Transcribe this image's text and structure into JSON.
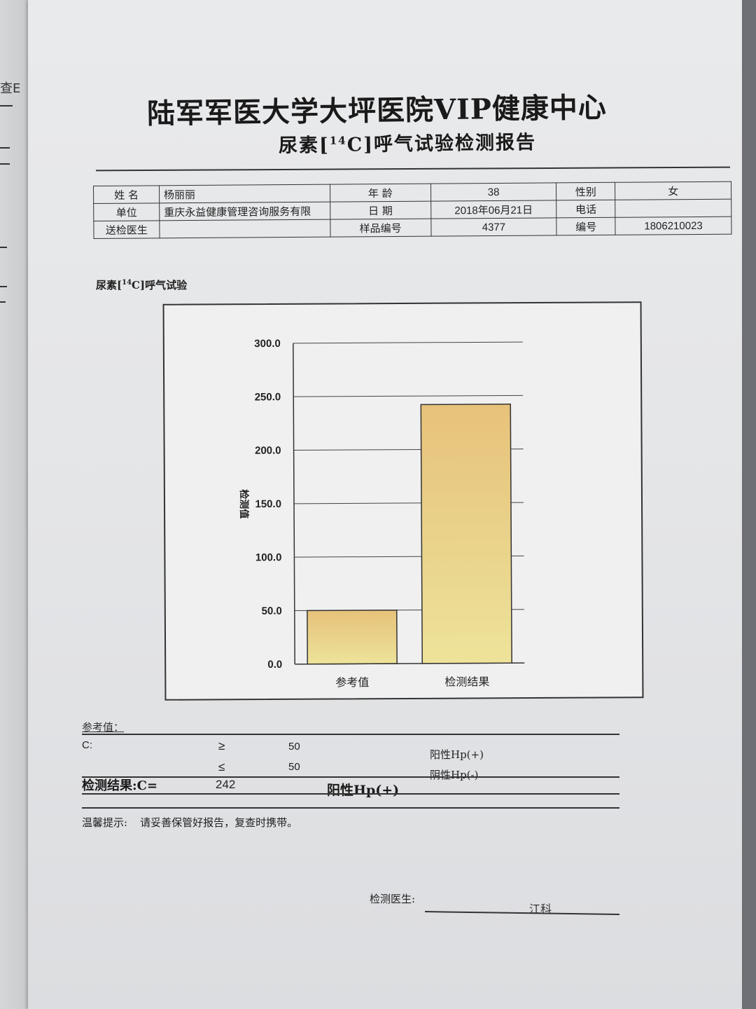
{
  "edge_text": "查E",
  "header": {
    "title": "陆军军医大学大坪医院VIP健康中心",
    "subtitle_before": "尿素[",
    "subtitle_sup": "14",
    "subtitle_after": "C]呼气试验检测报告"
  },
  "patient": {
    "name_label": "姓    名",
    "name": "杨丽丽",
    "age_label": "年    龄",
    "age": "38",
    "gender_label": "性别",
    "gender": "女",
    "unit_label": "单位",
    "unit": "重庆永益健康管理咨询服务有限",
    "date_label": "日    期",
    "date": "2018年06月21日",
    "phone_label": "电话",
    "phone": "",
    "doctor_label": "送检医生",
    "doctor": "",
    "sample_label": "样品编号",
    "sample": "4377",
    "serial_label": "编号",
    "serial": "1806210023"
  },
  "chart_section": {
    "label_before": "尿素[",
    "label_sup": "14",
    "label_after": "C]呼气试验"
  },
  "chart_data": {
    "type": "bar",
    "categories": [
      "参考值",
      "检测结果"
    ],
    "values": [
      50,
      242
    ],
    "title": "",
    "xlabel": "",
    "ylabel": "检测值",
    "ylim": [
      0,
      300
    ],
    "yticks": [
      "0.0",
      "50.0",
      "100.0",
      "150.0",
      "200.0",
      "250.0",
      "300.0"
    ],
    "grid": true,
    "bar_color": "#e9cf86"
  },
  "reference": {
    "heading": "参考值：",
    "c_label": "C:",
    "rows": [
      {
        "op": "≥",
        "value": "50",
        "result": "阳性Hp(+)"
      },
      {
        "op": "≤",
        "value": "50",
        "result": "阴性Hp(-)"
      }
    ]
  },
  "result": {
    "label": "检测结果:C=",
    "value": "242",
    "text": "阳性Hp(+)"
  },
  "tip": {
    "label": "温馨提示:",
    "text": "请妥善保管好报告，复查时携带。"
  },
  "signature": {
    "label": "检测医生:",
    "name": "江科"
  }
}
